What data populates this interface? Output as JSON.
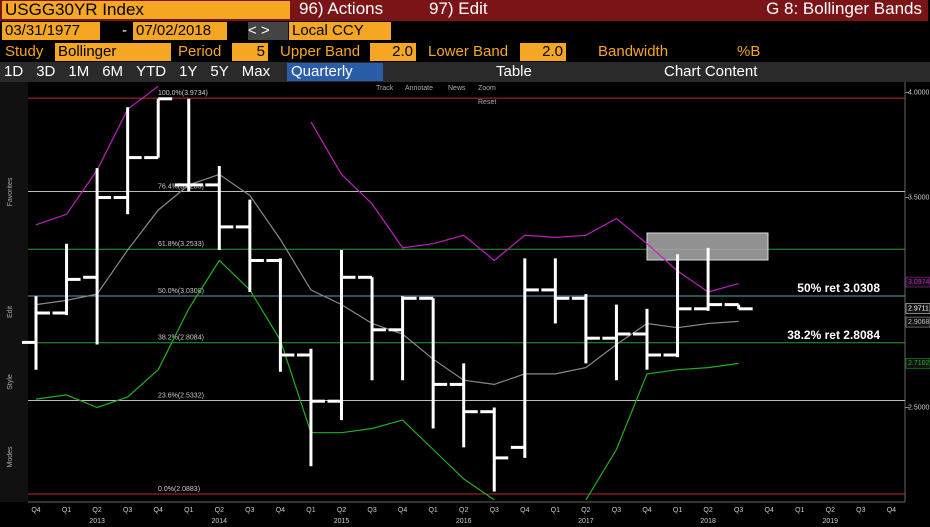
{
  "header": {
    "ticker": "USGG30YR Index",
    "actions": "96) Actions",
    "edit": "97) Edit",
    "function": "G 8: Bollinger Bands"
  },
  "range": {
    "start": "03/31/1977",
    "dash": "-",
    "end": "07/02/2018",
    "currency": "Local CCY"
  },
  "study": {
    "label": "Study",
    "name": "Bollinger",
    "period_label": "Period",
    "period": "5",
    "upper_label": "Upper Band",
    "upper": "2.0",
    "lower_label": "Lower Band",
    "lower": "2.0",
    "bandwidth": "Bandwidth",
    "pctb": "%B"
  },
  "toolbar": {
    "periods": [
      "1D",
      "3D",
      "1M",
      "6M",
      "YTD",
      "1Y",
      "5Y",
      "Max"
    ],
    "frequency": "Quarterly",
    "table": "Table",
    "content": "Chart Content"
  },
  "chart_tools": [
    "Track",
    "Annotate",
    "News",
    "Zoom",
    "Reset"
  ],
  "side_labels": [
    "Favorites",
    "Edit",
    "Style",
    "Modes"
  ],
  "chart_data": {
    "type": "ohlc",
    "categories": [
      "Q4",
      "Q1",
      "Q2",
      "Q3",
      "Q4",
      "Q1",
      "Q2",
      "Q3",
      "Q4",
      "Q1",
      "Q2",
      "Q3",
      "Q4",
      "Q1",
      "Q2",
      "Q3",
      "Q4",
      "Q1",
      "Q2",
      "Q3",
      "Q4",
      "Q1",
      "Q2",
      "Q3",
      "Q4",
      "Q1",
      "Q2",
      "Q3",
      "Q4"
    ],
    "years": [
      "2013",
      "2014",
      "2015",
      "2016",
      "2017",
      "2018",
      "2019"
    ],
    "open": [
      2.81,
      2.95,
      3.12,
      3.5,
      3.69,
      3.56,
      3.56,
      3.36,
      3.2,
      2.75,
      2.53,
      3.12,
      2.87,
      3.02,
      2.61,
      2.48,
      2.31,
      3.06,
      3.02,
      2.83,
      2.85,
      2.75,
      2.97,
      2.99,
      null,
      null,
      null,
      null,
      null
    ],
    "high": [
      3.03,
      3.28,
      3.64,
      3.93,
      3.97,
      3.97,
      3.65,
      3.49,
      3.21,
      2.78,
      3.25,
      3.12,
      3.03,
      3.02,
      2.71,
      2.5,
      3.21,
      3.21,
      3.04,
      2.99,
      2.97,
      3.23,
      3.26,
      2.99,
      null,
      null,
      null,
      null,
      null
    ],
    "low": [
      2.68,
      2.94,
      2.8,
      3.42,
      3.69,
      3.53,
      3.25,
      3.05,
      2.67,
      2.22,
      2.44,
      2.63,
      2.63,
      2.4,
      2.31,
      2.1,
      2.26,
      2.9,
      2.71,
      2.63,
      2.68,
      2.74,
      2.96,
      2.97,
      null,
      null,
      null,
      null,
      null
    ],
    "close": [
      2.95,
      3.11,
      3.5,
      3.69,
      3.97,
      3.56,
      3.36,
      3.2,
      2.75,
      2.53,
      3.12,
      2.87,
      3.02,
      2.61,
      2.48,
      2.26,
      3.06,
      3.02,
      2.83,
      2.85,
      2.75,
      2.97,
      2.99,
      2.97,
      null,
      null,
      null,
      null,
      null
    ],
    "color": "#ffffff",
    "bands": [
      {
        "color": "#c020c0",
        "values": [
          3.37,
          3.42,
          3.63,
          3.92,
          4.03,
          null,
          null,
          null,
          null,
          3.86,
          3.61,
          3.47,
          3.26,
          3.28,
          3.32,
          3.2,
          3.32,
          3.31,
          3.32,
          3.4,
          3.28,
          3.15,
          3.05,
          3.09,
          null,
          null,
          null,
          null,
          null
        ]
      },
      {
        "color": "#8a8a8a",
        "values": [
          2.99,
          3.01,
          3.04,
          3.25,
          3.44,
          3.56,
          3.61,
          3.51,
          3.3,
          3.06,
          2.99,
          2.9,
          2.85,
          2.73,
          2.63,
          2.61,
          2.66,
          2.66,
          2.69,
          2.8,
          2.9,
          2.88,
          2.9,
          2.91,
          null,
          null,
          null,
          null,
          null
        ]
      },
      {
        "color": "#20b020",
        "values": [
          2.54,
          2.56,
          2.5,
          2.55,
          2.68,
          2.97,
          3.2,
          3.06,
          2.82,
          2.38,
          2.38,
          2.4,
          2.44,
          2.3,
          2.16,
          2.06,
          null,
          null,
          2.06,
          2.3,
          2.66,
          2.68,
          2.69,
          2.71,
          null,
          null,
          null,
          null,
          null
        ]
      }
    ],
    "fib_levels": [
      {
        "label": "100.0%(3.9734)",
        "value": 3.9734,
        "color": "#c0282c"
      },
      {
        "label": "76.4%(3.5285)",
        "value": 3.5285,
        "color": "#bbbbbb"
      },
      {
        "label": "61.8%(3.2533)",
        "value": 3.2533,
        "color": "#28a028"
      },
      {
        "label": "50.0%(3.0308)",
        "value": 3.0308,
        "color": "#5aa0b0"
      },
      {
        "label": "38.2%(2.8084)",
        "value": 2.8084,
        "color": "#28a028"
      },
      {
        "label": "23.6%(2.5332)",
        "value": 2.5332,
        "color": "#bbbbbb"
      },
      {
        "label": "0.0%(2.0883)",
        "value": 2.0883,
        "color": "#c0282c"
      }
    ],
    "annotations": [
      {
        "text": "50% ret 3.0308",
        "value": 3.0308
      },
      {
        "text": "38.2% ret 2.8084",
        "value": 2.8084
      }
    ],
    "last_values": [
      {
        "label": "3.0974",
        "value": 3.0974,
        "color": "#c020c0"
      },
      {
        "label": "2.9711",
        "value": 2.9711,
        "color": "#ffffff"
      },
      {
        "label": "2.9068",
        "value": 2.9068,
        "color": "#bbbbbb"
      },
      {
        "label": "2.7102",
        "value": 2.7102,
        "color": "#20b020"
      }
    ],
    "ylim": [
      2.05,
      4.05
    ],
    "yticks": [
      {
        "value": 4,
        "label": "4.0000"
      },
      {
        "value": 3.5,
        "label": "3.5000"
      },
      {
        "value": 2.5,
        "label": "2.5000"
      }
    ]
  }
}
